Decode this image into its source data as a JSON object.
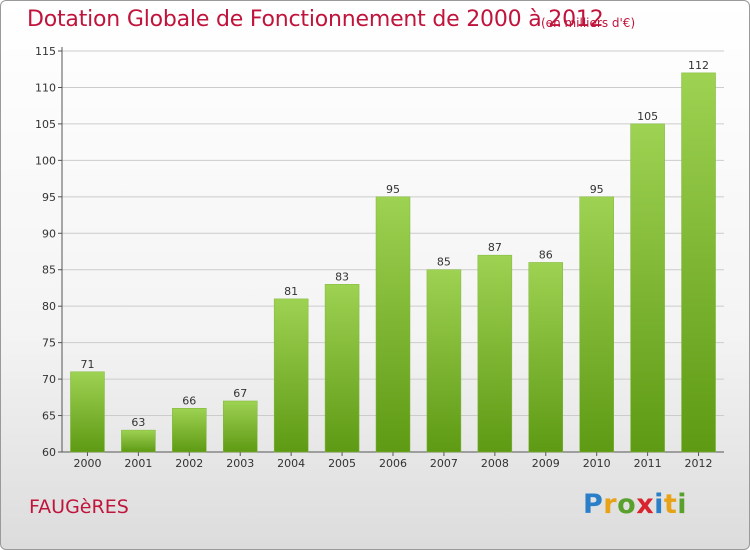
{
  "title": "Dotation Globale de Fonctionnement de 2000 à 2012",
  "unit_note": "(en milliers d'€)",
  "commune": "FAUGèRES",
  "brand": {
    "letters": [
      "P",
      "r",
      "o",
      "x",
      "i",
      "t",
      "i"
    ],
    "colors": [
      "#2a7fc8",
      "#e8a217",
      "#5aa02c",
      "#d9232d",
      "#2a7fc8",
      "#e8a217",
      "#5aa02c"
    ]
  },
  "colors": {
    "bar_top": "#9ed252",
    "bar_bottom": "#5e9a14",
    "title": "#c0143c",
    "grid": "#cccccc"
  },
  "chart_data": {
    "type": "bar",
    "categories": [
      "2000",
      "2001",
      "2002",
      "2003",
      "2004",
      "2005",
      "2006",
      "2007",
      "2008",
      "2009",
      "2010",
      "2011",
      "2012"
    ],
    "values": [
      71,
      63,
      66,
      67,
      81,
      83,
      95,
      85,
      87,
      86,
      95,
      105,
      112
    ],
    "ylim": [
      60,
      115
    ],
    "yticks": [
      60,
      65,
      70,
      75,
      80,
      85,
      90,
      95,
      100,
      105,
      110,
      115
    ],
    "grid": true,
    "xlabel": "",
    "ylabel": ""
  }
}
